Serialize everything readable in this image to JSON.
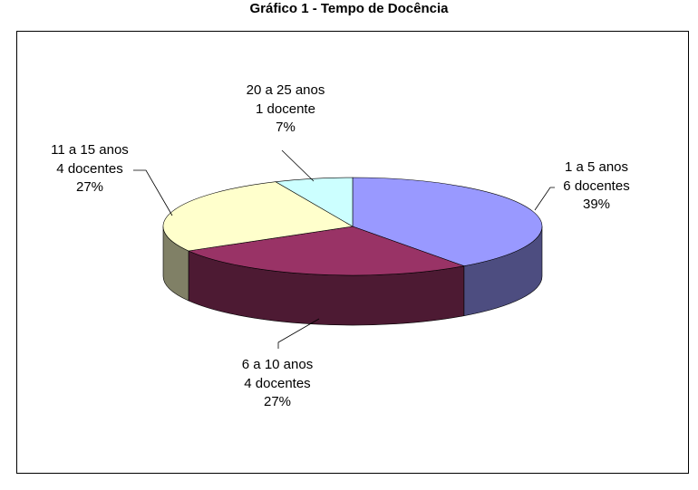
{
  "chart_data": {
    "type": "pie",
    "title": "Gráfico 1 - Tempo de Docência",
    "slices": [
      {
        "category": "1 a 5 anos",
        "count_label": "6 docentes",
        "percent_label": "39%",
        "value": 6,
        "color": "#9999FF",
        "side_color": "#4D4D80"
      },
      {
        "category": "6 a 10 anos",
        "count_label": "4 docentes",
        "percent_label": "27%",
        "value": 4,
        "color": "#993366",
        "side_color": "#4D1A33"
      },
      {
        "category": "11 a 15 anos",
        "count_label": "4 docentes",
        "percent_label": "27%",
        "value": 4,
        "color": "#FFFFCC",
        "side_color": "#808066"
      },
      {
        "category": "20 a 25 anos",
        "count_label": "1 docente",
        "percent_label": "7%",
        "value": 1,
        "color": "#CCFFFF",
        "side_color": "#668080"
      }
    ],
    "legend": "none",
    "style": "3d"
  }
}
